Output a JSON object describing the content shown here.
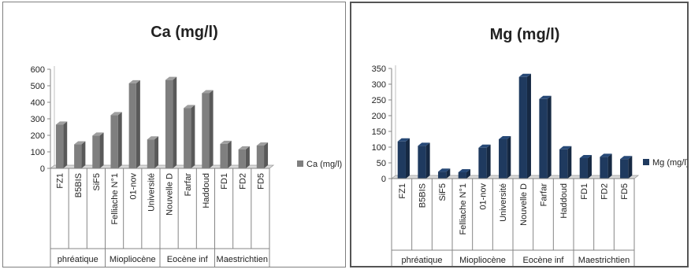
{
  "chart_data": [
    {
      "type": "bar",
      "title": "Ca (mg/l)",
      "categories": [
        "FZ1",
        "B5BIS",
        "SiF5",
        "Felliache N°1",
        "01-nov",
        "Université",
        "Nouvelle D",
        "Farfar",
        "Haddoud",
        "FD1",
        "FD2",
        "FD5"
      ],
      "groups": [
        {
          "label": "phréatique",
          "count": 3
        },
        {
          "label": "Miopliocène",
          "count": 3
        },
        {
          "label": "Eocène inf",
          "count": 3
        },
        {
          "label": "Maestrichtien",
          "count": 3
        }
      ],
      "series": [
        {
          "name": "Ca (mg/l)",
          "color": "#7f7f7f",
          "values": [
            265,
            145,
            198,
            322,
            515,
            175,
            535,
            365,
            455,
            148,
            115,
            138
          ]
        }
      ],
      "ylim": [
        0,
        600
      ],
      "yticks": [
        "0",
        "100",
        "200",
        "300",
        "400",
        "500",
        "600"
      ],
      "grid": false,
      "legend_position": "right"
    },
    {
      "type": "bar",
      "title": "Mg (mg/l)",
      "categories": [
        "FZ1",
        "B5BIS",
        "SiF5",
        "Felliache N°1",
        "01-nov",
        "Université",
        "Nouvelle D",
        "Farfar",
        "Haddoud",
        "FD1",
        "FD2",
        "FD5"
      ],
      "groups": [
        {
          "label": "phréatique",
          "count": 3
        },
        {
          "label": "Miopliocène",
          "count": 3
        },
        {
          "label": "Eocène inf",
          "count": 3
        },
        {
          "label": "Maestrichtien",
          "count": 3
        }
      ],
      "series": [
        {
          "name": "Mg (mg/l)",
          "color": "#1f3a5f",
          "values": [
            118,
            104,
            22,
            20,
            98,
            125,
            323,
            253,
            93,
            65,
            69,
            62
          ]
        }
      ],
      "ylim": [
        0,
        350
      ],
      "yticks": [
        "0",
        "50",
        "100",
        "150",
        "200",
        "250",
        "300",
        "350"
      ],
      "grid": false,
      "legend_position": "right"
    }
  ]
}
